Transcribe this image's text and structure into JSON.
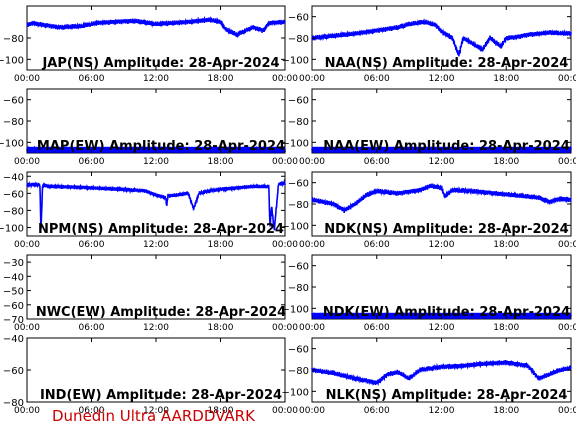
{
  "footer": "Dunedin Ultra AARDDVARK",
  "colors": {
    "trace": "#0000ff",
    "axes": "#000000",
    "footer": "#cc0000"
  },
  "x_ticks": [
    "00:00",
    "06:00",
    "12:00",
    "18:00",
    "00:00"
  ],
  "chart_data": [
    {
      "type": "line",
      "title": "JAP(NS) Amplitude: 28-Apr-2024",
      "xlim": [
        0,
        24
      ],
      "ylim": [
        -110,
        -50
      ],
      "yticks": [
        -80,
        -100
      ],
      "series": [
        {
          "x": [
            0,
            0.5,
            3,
            5,
            6.5,
            8,
            10,
            12,
            15,
            17,
            18,
            18.5,
            19.5,
            21,
            22,
            22.5,
            24
          ],
          "y": [
            -68,
            -66,
            -70,
            -69,
            -66,
            -65,
            -64,
            -67,
            -65,
            -63,
            -65,
            -72,
            -77,
            -70,
            -73,
            -66,
            -65
          ]
        }
      ]
    },
    {
      "type": "line",
      "title": "NAA(NS) Amplitude: 28-Apr-2024",
      "xlim": [
        0,
        24
      ],
      "ylim": [
        -110,
        -50
      ],
      "yticks": [
        -60,
        -80,
        -100
      ],
      "series": [
        {
          "x": [
            0,
            2,
            4,
            6,
            8,
            9,
            10.5,
            11.5,
            12,
            13,
            13.6,
            14,
            15,
            15.8,
            16.5,
            17.5,
            18,
            19,
            20,
            21,
            22,
            24
          ],
          "y": [
            -80,
            -78,
            -76,
            -73,
            -70,
            -67,
            -65,
            -68,
            -74,
            -80,
            -96,
            -80,
            -86,
            -91,
            -80,
            -88,
            -80,
            -79,
            -77,
            -76,
            -75,
            -76
          ]
        }
      ]
    },
    {
      "type": "line",
      "title": "NAA(EW) Amplitude: 28-Apr-2024",
      "xlim": [
        0,
        24
      ],
      "ylim": [
        -110,
        -50
      ],
      "yticks": [
        -60,
        -80,
        -100
      ],
      "series": [
        {
          "x": [
            0,
            24
          ],
          "y": [
            -107,
            -107
          ]
        }
      ]
    },
    {
      "type": "line",
      "title": "NPM(NS) Amplitude: 28-Apr-2024",
      "xlim": [
        0,
        24
      ],
      "ylim": [
        -110,
        -35
      ],
      "yticks": [
        -40,
        -60,
        -80,
        -100
      ],
      "series": [
        {
          "x": [
            0,
            1.2,
            1.3,
            1.45,
            2,
            5,
            8,
            11,
            12,
            12.9,
            13,
            13.1,
            14,
            15,
            15.5,
            16,
            17,
            18,
            19,
            21,
            22.5,
            22.6,
            22.75,
            23,
            23.4,
            24
          ],
          "y": [
            -50,
            -50,
            -105,
            -50,
            -52,
            -53,
            -55,
            -57,
            -62,
            -65,
            -75,
            -63,
            -62,
            -60,
            -78,
            -60,
            -57,
            -55,
            -54,
            -52,
            -52,
            -100,
            -75,
            -103,
            -49,
            -48
          ]
        }
      ]
    },
    {
      "type": "line",
      "title": "NDK(NS) Amplitude: 28-Apr-2024",
      "xlim": [
        0,
        24
      ],
      "ylim": [
        -110,
        -50
      ],
      "yticks": [
        -60,
        -80,
        -100
      ],
      "series": [
        {
          "x": [
            0,
            2,
            3,
            4,
            5,
            6,
            8,
            10,
            11,
            12,
            12.3,
            13,
            15,
            17,
            19,
            21,
            22,
            23,
            24
          ],
          "y": [
            -76,
            -80,
            -86,
            -80,
            -72,
            -68,
            -70,
            -67,
            -63,
            -65,
            -73,
            -67,
            -68,
            -70,
            -72,
            -74,
            -78,
            -75,
            -76
          ]
        }
      ]
    },
    {
      "type": "line",
      "title": "NWC(EW) Amplitude: 28-Apr-2024",
      "xlim": [
        0,
        24
      ],
      "ylim": [
        -70,
        -25
      ],
      "yticks": [
        -30,
        -40,
        -50,
        -60,
        -70
      ],
      "series": [
        {
          "x": [],
          "y": []
        }
      ]
    },
    {
      "type": "line",
      "title": "NDK(EW) Amplitude: 28-Apr-2024",
      "xlim": [
        0,
        24
      ],
      "ylim": [
        -110,
        -50
      ],
      "yticks": [
        -60,
        -80,
        -100
      ],
      "series": [
        {
          "x": [
            0,
            24
          ],
          "y": [
            -107,
            -107
          ]
        }
      ]
    },
    {
      "type": "line",
      "title": "IND(EW) Amplitude: 28-Apr-2024",
      "xlim": [
        0,
        24
      ],
      "ylim": [
        -80,
        -40
      ],
      "yticks": [
        -40,
        -60,
        -80
      ],
      "series": [
        {
          "x": [],
          "y": []
        }
      ]
    },
    {
      "type": "line",
      "title": "NLK(NS) Amplitude: 28-Apr-2024",
      "xlim": [
        0,
        24
      ],
      "ylim": [
        -110,
        -50
      ],
      "yticks": [
        -60,
        -80,
        -100
      ],
      "series": [
        {
          "x": [
            0,
            2,
            4,
            6,
            7,
            8,
            9,
            10,
            12,
            14,
            16,
            18,
            20,
            21,
            22,
            23,
            24
          ],
          "y": [
            -80,
            -83,
            -88,
            -92,
            -84,
            -82,
            -88,
            -80,
            -77,
            -76,
            -74,
            -73,
            -76,
            -88,
            -84,
            -80,
            -78
          ]
        }
      ]
    }
  ]
}
